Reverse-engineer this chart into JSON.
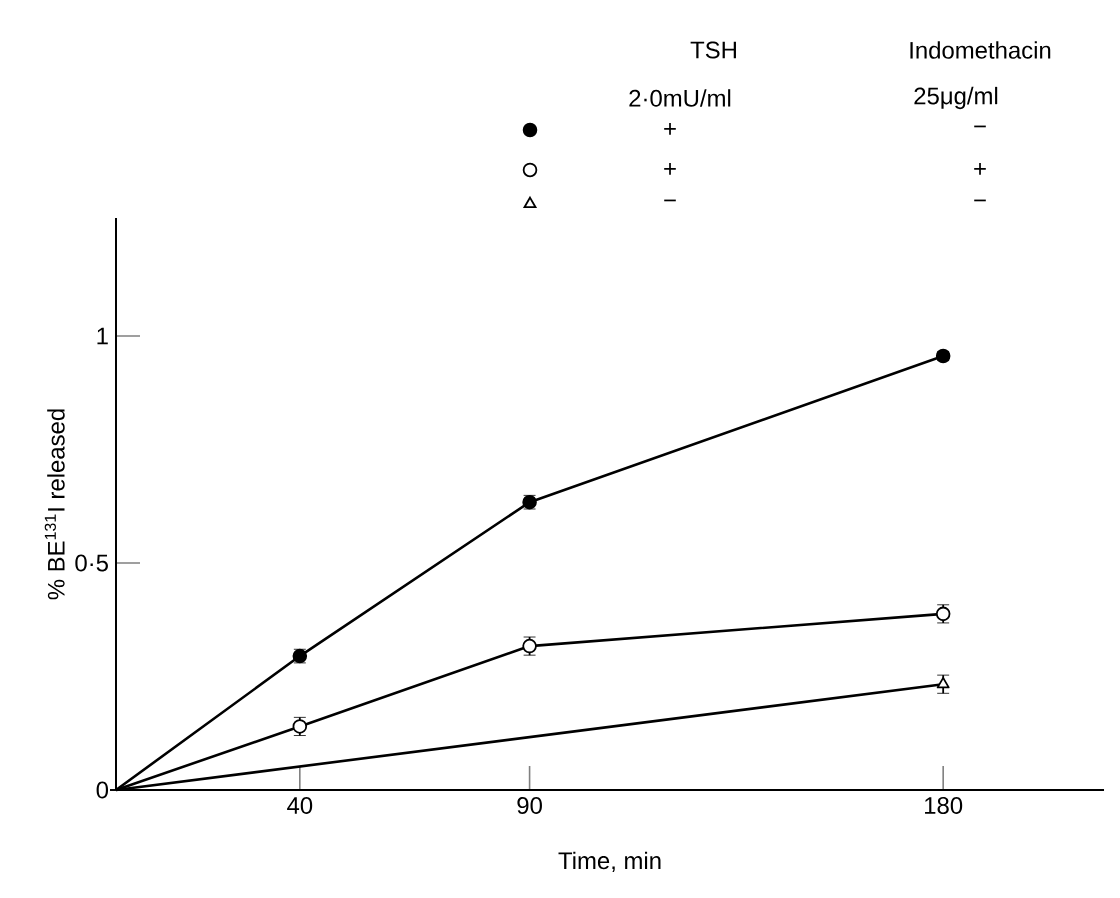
{
  "chart_data": {
    "type": "line",
    "xlabel": "Time,   min",
    "ylabel": "% BE$^{131}$I released",
    "annotations": [
      "TSH",
      "2·0mU/ml",
      "Indomethacin",
      "25μg/ml",
      "+",
      "−",
      "+",
      "+",
      "−",
      "−"
    ],
    "xlim": [
      0,
      215
    ],
    "ylim": [
      0,
      1.26
    ],
    "xticks": [
      40,
      90,
      180
    ],
    "yticks": [
      0,
      {
        "value": 0.5,
        "label": "0·5"
      },
      1
    ],
    "line_style": "solid",
    "series": [
      {
        "color": "#000000",
        "marker": "circle",
        "x": [
          0,
          40,
          90,
          180
        ],
        "values": [
          0,
          0.295,
          0.634,
          0.956
        ],
        "errors": [
          null,
          0.015,
          0.015,
          0.01
        ]
      },
      {
        "color": "#000000",
        "marker": "open circle",
        "x": [
          0,
          40,
          90,
          180
        ],
        "values": [
          0,
          0.14,
          0.317,
          0.388
        ],
        "errors": [
          null,
          0.02,
          0.02,
          0.02
        ]
      },
      {
        "color": "#000000",
        "marker": "triangle",
        "x": [
          0,
          180
        ],
        "values": [
          0,
          0.233
        ],
        "errors": [
          null,
          0.02
        ]
      }
    ]
  }
}
